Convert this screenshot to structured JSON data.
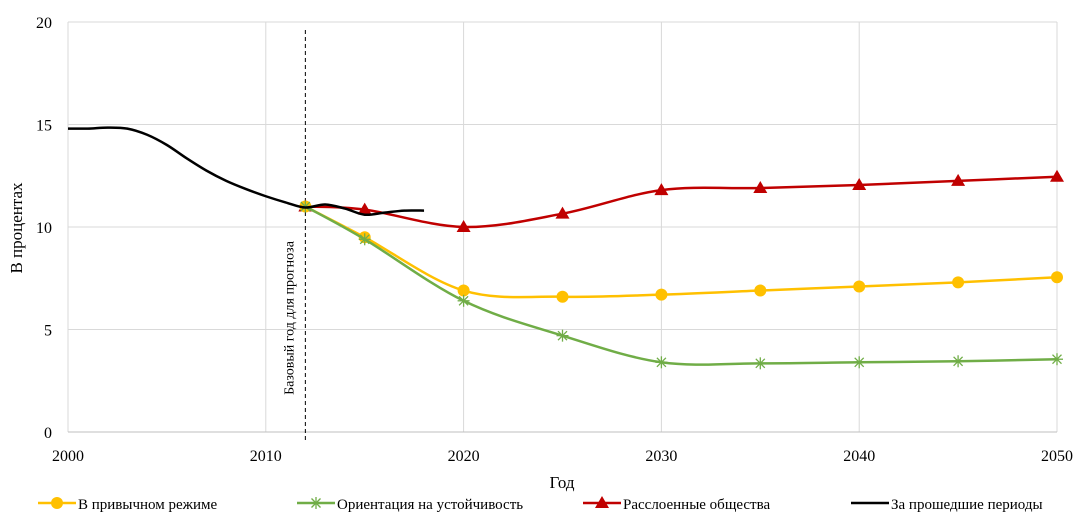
{
  "chart_data": {
    "type": "line",
    "title": "",
    "xlabel": "Год",
    "ylabel": "В процентах",
    "xlim": [
      2000,
      2050
    ],
    "ylim": [
      0,
      20
    ],
    "xticks": [
      "2000",
      "2010",
      "2020",
      "2030",
      "2040",
      "2050"
    ],
    "yticks": [
      "0",
      "5",
      "10",
      "15",
      "20"
    ],
    "vertical_gridlines": true,
    "horizontal_gridlines": true,
    "annotation": {
      "text": "Базовый год для прогноза",
      "x": 2012
    },
    "legend_position": "bottom",
    "series": [
      {
        "name": "В привычном режиме",
        "color": "#FFC000",
        "marker": "circle",
        "x": [
          2012,
          2015,
          2020,
          2025,
          2030,
          2035,
          2040,
          2045,
          2050
        ],
        "y": [
          11.0,
          9.5,
          6.9,
          6.6,
          6.7,
          6.9,
          7.1,
          7.3,
          7.55
        ]
      },
      {
        "name": "Ориентация на устойчивость",
        "color": "#70AD47",
        "marker": "asterisk",
        "x": [
          2012,
          2015,
          2020,
          2025,
          2030,
          2035,
          2040,
          2045,
          2050
        ],
        "y": [
          11.0,
          9.4,
          6.4,
          4.7,
          3.4,
          3.35,
          3.4,
          3.45,
          3.55
        ]
      },
      {
        "name": "Расслоенные общества",
        "color": "#C00000",
        "marker": "triangle",
        "x": [
          2012,
          2015,
          2020,
          2025,
          2030,
          2035,
          2040,
          2045,
          2050
        ],
        "y": [
          11.0,
          10.85,
          10.0,
          10.65,
          11.8,
          11.9,
          12.05,
          12.25,
          12.45
        ]
      },
      {
        "name": "За прошедшие периоды",
        "color": "#000000",
        "marker": "none",
        "x": [
          2000,
          2001,
          2002,
          2003,
          2004,
          2005,
          2006,
          2007,
          2008,
          2009,
          2010,
          2011,
          2012,
          2013,
          2014,
          2015,
          2016,
          2017,
          2018
        ],
        "y": [
          14.8,
          14.8,
          14.85,
          14.8,
          14.5,
          14.0,
          13.35,
          12.75,
          12.25,
          11.85,
          11.5,
          11.2,
          10.95,
          11.1,
          10.9,
          10.6,
          10.7,
          10.8,
          10.8
        ]
      }
    ]
  }
}
